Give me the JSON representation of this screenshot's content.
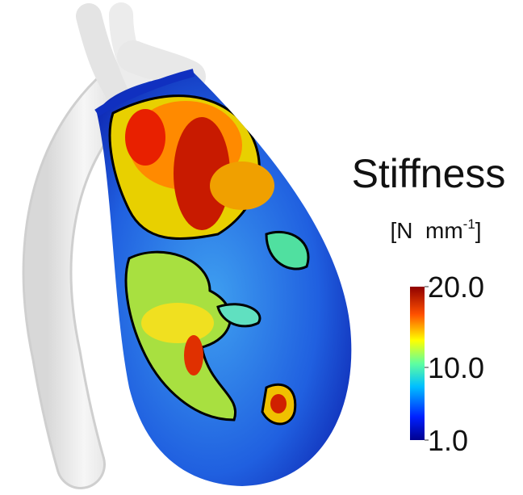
{
  "colorbar": {
    "title": "Stiffness",
    "unit": "[N  mm",
    "unit_exponent": "-1",
    "unit_end": "]",
    "range": [
      1,
      20
    ],
    "ticks": [
      {
        "value": 20,
        "label": "20.0"
      },
      {
        "value": 10,
        "label": "10.0"
      },
      {
        "value": 1,
        "label": "1.0"
      }
    ]
  }
}
